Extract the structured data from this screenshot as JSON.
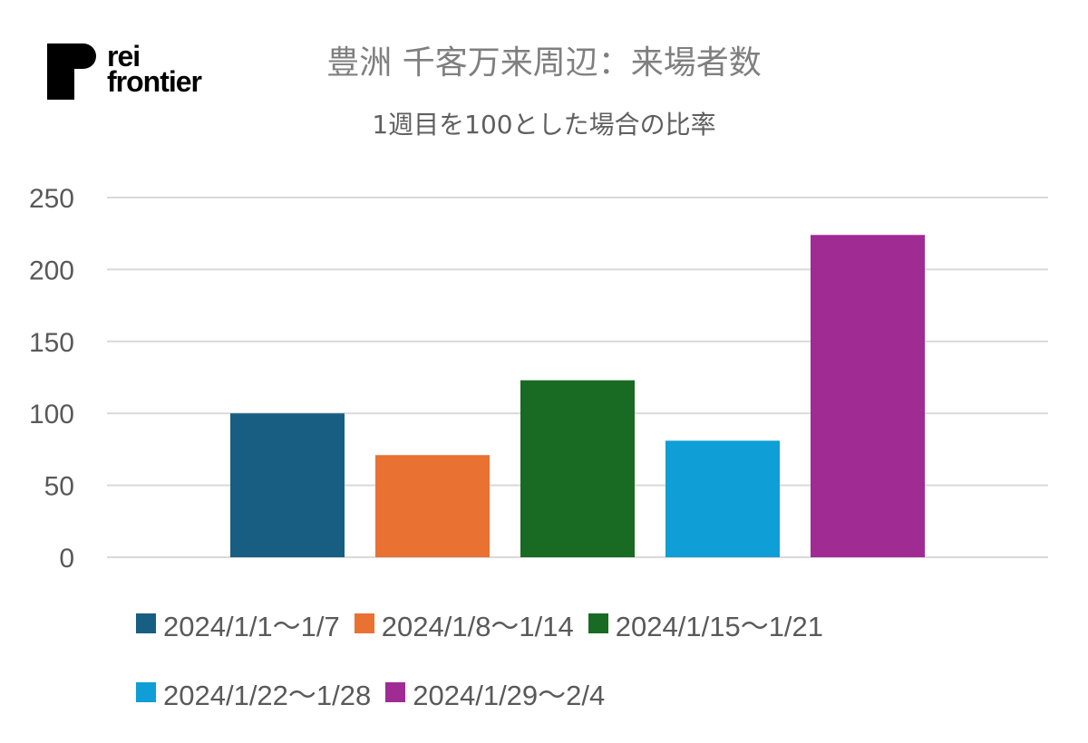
{
  "logo": {
    "line1": "rei",
    "line2": "frontier"
  },
  "chart_data": {
    "type": "bar",
    "title": "豊洲 千客万来周辺：来場者数",
    "subtitle": "1週目を100とした場合の比率",
    "categories": [
      "2024/1/1〜1/7",
      "2024/1/8〜1/14",
      "2024/1/15〜1/21",
      "2024/1/22〜1/28",
      "2024/1/29〜2/4"
    ],
    "values": [
      100,
      71,
      123,
      81,
      224
    ],
    "colors": [
      "#175e82",
      "#e97132",
      "#196b24",
      "#0f9ed5",
      "#a02b93"
    ],
    "ylim": [
      0,
      250
    ],
    "yticks": [
      "0",
      "50",
      "100",
      "150",
      "200",
      "250"
    ],
    "grid": true,
    "legend_position": "bottom"
  }
}
